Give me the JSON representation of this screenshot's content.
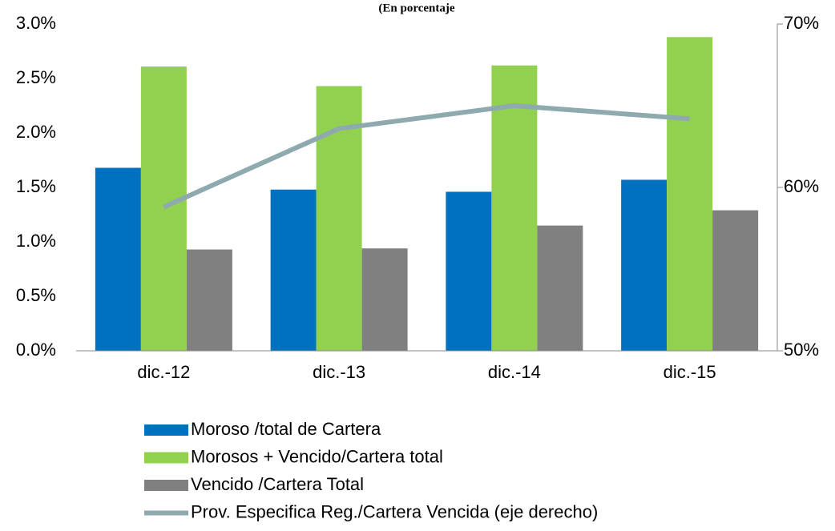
{
  "chart_data": {
    "type": "bar",
    "title": "(En porcentaje",
    "categories": [
      "dic.-12",
      "dic.-13",
      "dic.-14",
      "dic.-15"
    ],
    "series": [
      {
        "name": "Moroso /total de Cartera",
        "color": "#0070c0",
        "values": [
          1.68,
          1.48,
          1.46,
          1.57
        ]
      },
      {
        "name": "Morosos + Vencido/Cartera total",
        "color": "#92d050",
        "values": [
          2.61,
          2.43,
          2.62,
          2.88
        ]
      },
      {
        "name": "Vencido /Cartera Total",
        "color": "#808080",
        "values": [
          0.93,
          0.94,
          1.15,
          1.29
        ]
      },
      {
        "name": "Prov. Especifica Reg./Cartera Vencida (eje derecho)",
        "color": "#8eaaae",
        "type": "line",
        "axis": "y2",
        "values": [
          58.8,
          63.6,
          65.0,
          64.2
        ]
      }
    ],
    "ylim": [
      0,
      3.0
    ],
    "yticks": [
      {
        "value": 0,
        "label": "0.0%"
      },
      {
        "value": 0.5,
        "label": "0.5%"
      },
      {
        "value": 1.0,
        "label": "1.0%"
      },
      {
        "value": 1.5,
        "label": "1.5%"
      },
      {
        "value": 2.0,
        "label": "2.0%"
      },
      {
        "value": 2.5,
        "label": "2.5%"
      },
      {
        "value": 3.0,
        "label": "3.0%"
      }
    ],
    "y2lim": [
      50,
      70
    ],
    "y2ticks": [
      {
        "value": 50,
        "label": "50%"
      },
      {
        "value": 60,
        "label": "60%"
      },
      {
        "value": 70,
        "label": "70%"
      }
    ],
    "grid": false,
    "legend": "bottom"
  }
}
